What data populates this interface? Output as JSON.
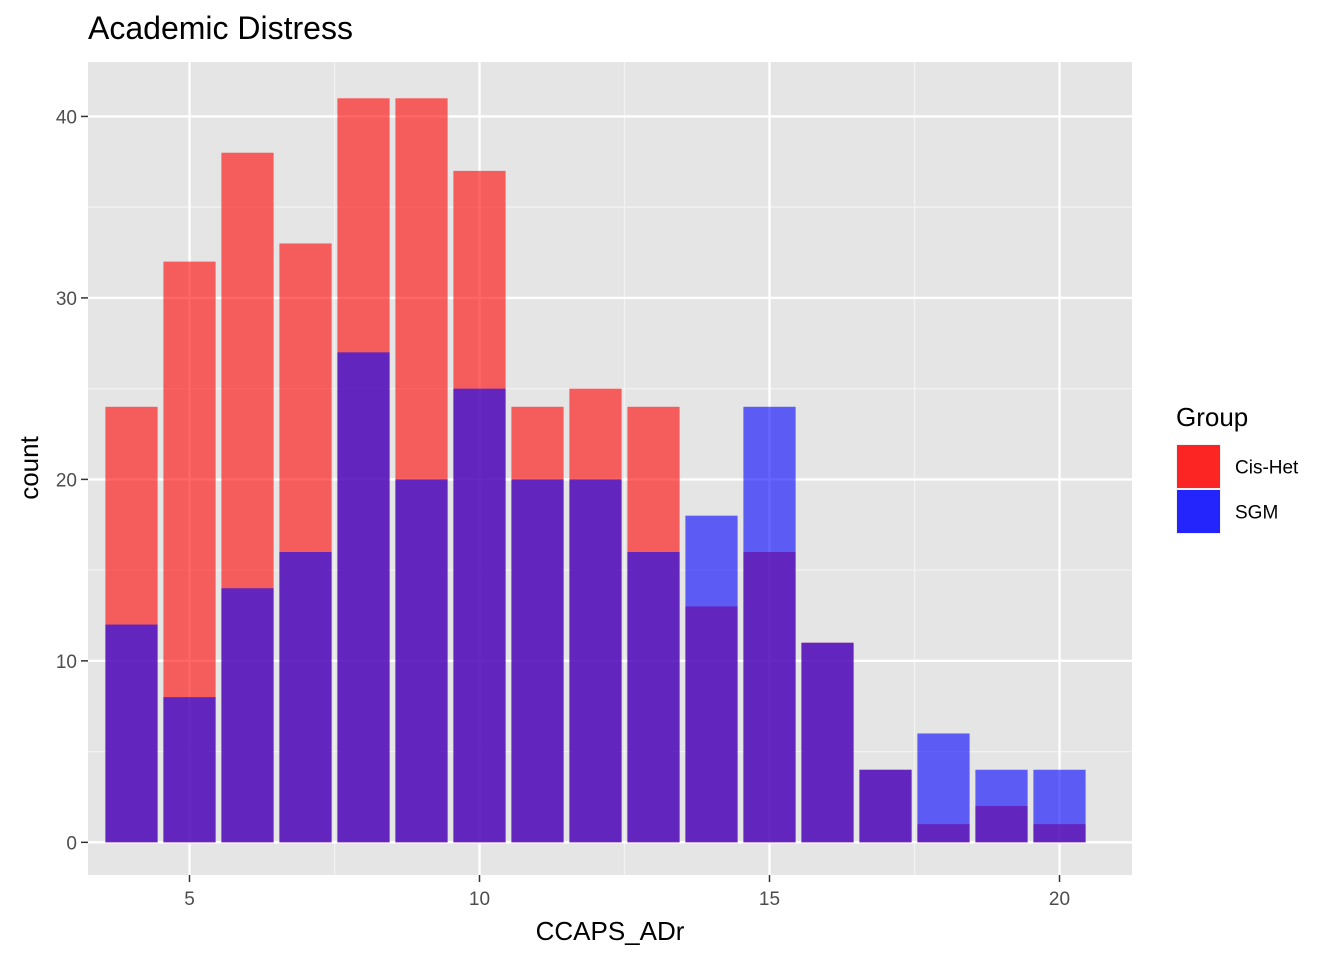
{
  "chart_data": {
    "type": "bar",
    "title": "Academic Distress",
    "xlabel": "CCAPS_ADr",
    "ylabel": "count",
    "xlim": [
      3.25,
      21.25
    ],
    "ylim": [
      -1.8,
      43.0
    ],
    "x_ticks": [
      5,
      10,
      15,
      20
    ],
    "y_ticks": [
      0,
      10,
      20,
      30,
      40
    ],
    "grid": true,
    "legend": {
      "title": "Group",
      "placement": "right"
    },
    "x": [
      4,
      5,
      6,
      7,
      8,
      9,
      10,
      11,
      12,
      13,
      14,
      15,
      16,
      17,
      18,
      19,
      20
    ],
    "series": [
      {
        "name": "Cis-Het",
        "color": "#FF0000",
        "values": [
          24,
          32,
          38,
          33,
          41,
          41,
          37,
          24,
          25,
          24,
          13,
          16,
          11,
          4,
          1,
          2,
          1
        ]
      },
      {
        "name": "SGM",
        "color": "#0000FF",
        "values": [
          12,
          8,
          14,
          16,
          27,
          20,
          25,
          20,
          20,
          16,
          18,
          24,
          11,
          4,
          6,
          4,
          4
        ]
      }
    ]
  }
}
